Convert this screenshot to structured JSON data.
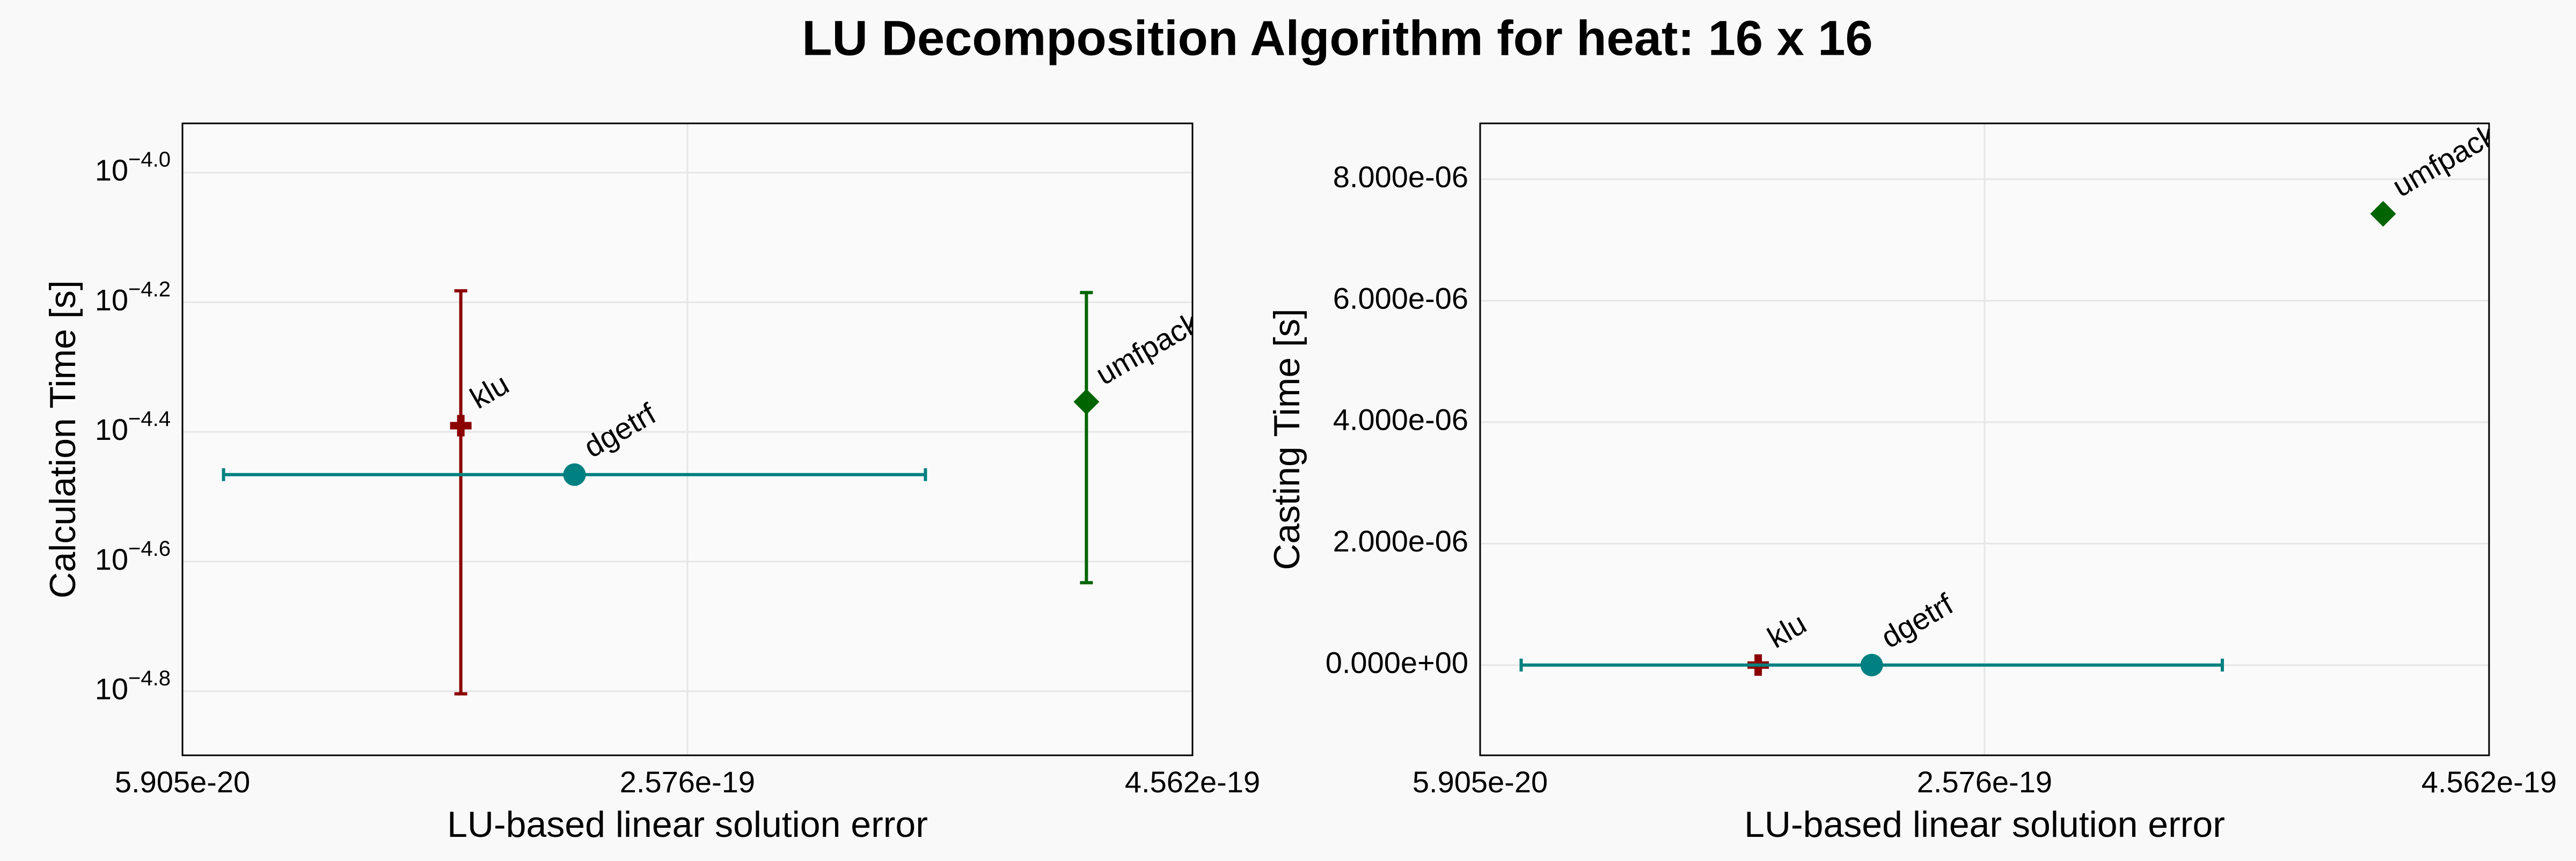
{
  "title": "LU Decomposition Algorithm for heat: 16 x 16",
  "chart_data": [
    {
      "type": "scatter",
      "xlabel": "LU-based linear solution error",
      "ylabel": "Calculation Time [s]",
      "xlim": [
        5.905e-20,
        4.562e-19
      ],
      "xticks": [
        5.905e-20,
        2.576e-19,
        4.562e-19
      ],
      "ylim": [
        1.262e-05,
        0.0001191
      ],
      "ylog": true,
      "yticks": [
        {
          "value": 0.0001,
          "label": "10−4.0"
        },
        {
          "value": 6.30957e-05,
          "label": "10−4.2"
        },
        {
          "value": 3.98107e-05,
          "label": "10−4.4"
        },
        {
          "value": 2.51189e-05,
          "label": "10−4.6"
        },
        {
          "value": 1.58489e-05,
          "label": "10−4.8"
        }
      ],
      "grid": true,
      "series": [
        {
          "name": "klu",
          "color": "#8b0000",
          "marker": "cross",
          "x": [
            1.685e-19
          ],
          "values": [
            4.07e-05
          ],
          "yerr": [
            2.5e-05
          ]
        },
        {
          "name": "dgetrf",
          "color": "#008080",
          "marker": "circle",
          "x": [
            2.132e-19
          ],
          "values": [
            3.42e-05
          ],
          "xerr": [
            1.38e-19
          ]
        },
        {
          "name": "umfpack",
          "color": "#006400",
          "marker": "diamond",
          "x": [
            4.145e-19
          ],
          "values": [
            4.43e-05
          ],
          "yerr": [
            2.1e-05
          ]
        }
      ]
    },
    {
      "type": "scatter",
      "xlabel": "LU-based linear solution error",
      "ylabel": "Casting Time [s]",
      "xlim": [
        5.905e-20,
        4.562e-19
      ],
      "xticks": [
        5.905e-20,
        2.576e-19,
        4.562e-19
      ],
      "ylim": [
        -1.486e-06,
        8.919e-06
      ],
      "ylog": false,
      "yticks": [
        {
          "value": 0,
          "label": "0.000e+00"
        },
        {
          "value": 2e-06,
          "label": "2.000e-06"
        },
        {
          "value": 4e-06,
          "label": "4.000e-06"
        },
        {
          "value": 6e-06,
          "label": "6.000e-06"
        },
        {
          "value": 8e-06,
          "label": "8.000e-06"
        }
      ],
      "grid": true,
      "series": [
        {
          "name": "klu",
          "color": "#8b0000",
          "marker": "cross",
          "x": [
            1.685e-19
          ],
          "values": [
            0
          ]
        },
        {
          "name": "dgetrf",
          "color": "#008080",
          "marker": "circle",
          "x": [
            2.132e-19
          ],
          "values": [
            0
          ],
          "xerr": [
            1.38e-19
          ]
        },
        {
          "name": "umfpack",
          "color": "#006400",
          "marker": "diamond",
          "x": [
            4.145e-19
          ],
          "values": [
            7.43e-06
          ]
        }
      ]
    }
  ]
}
